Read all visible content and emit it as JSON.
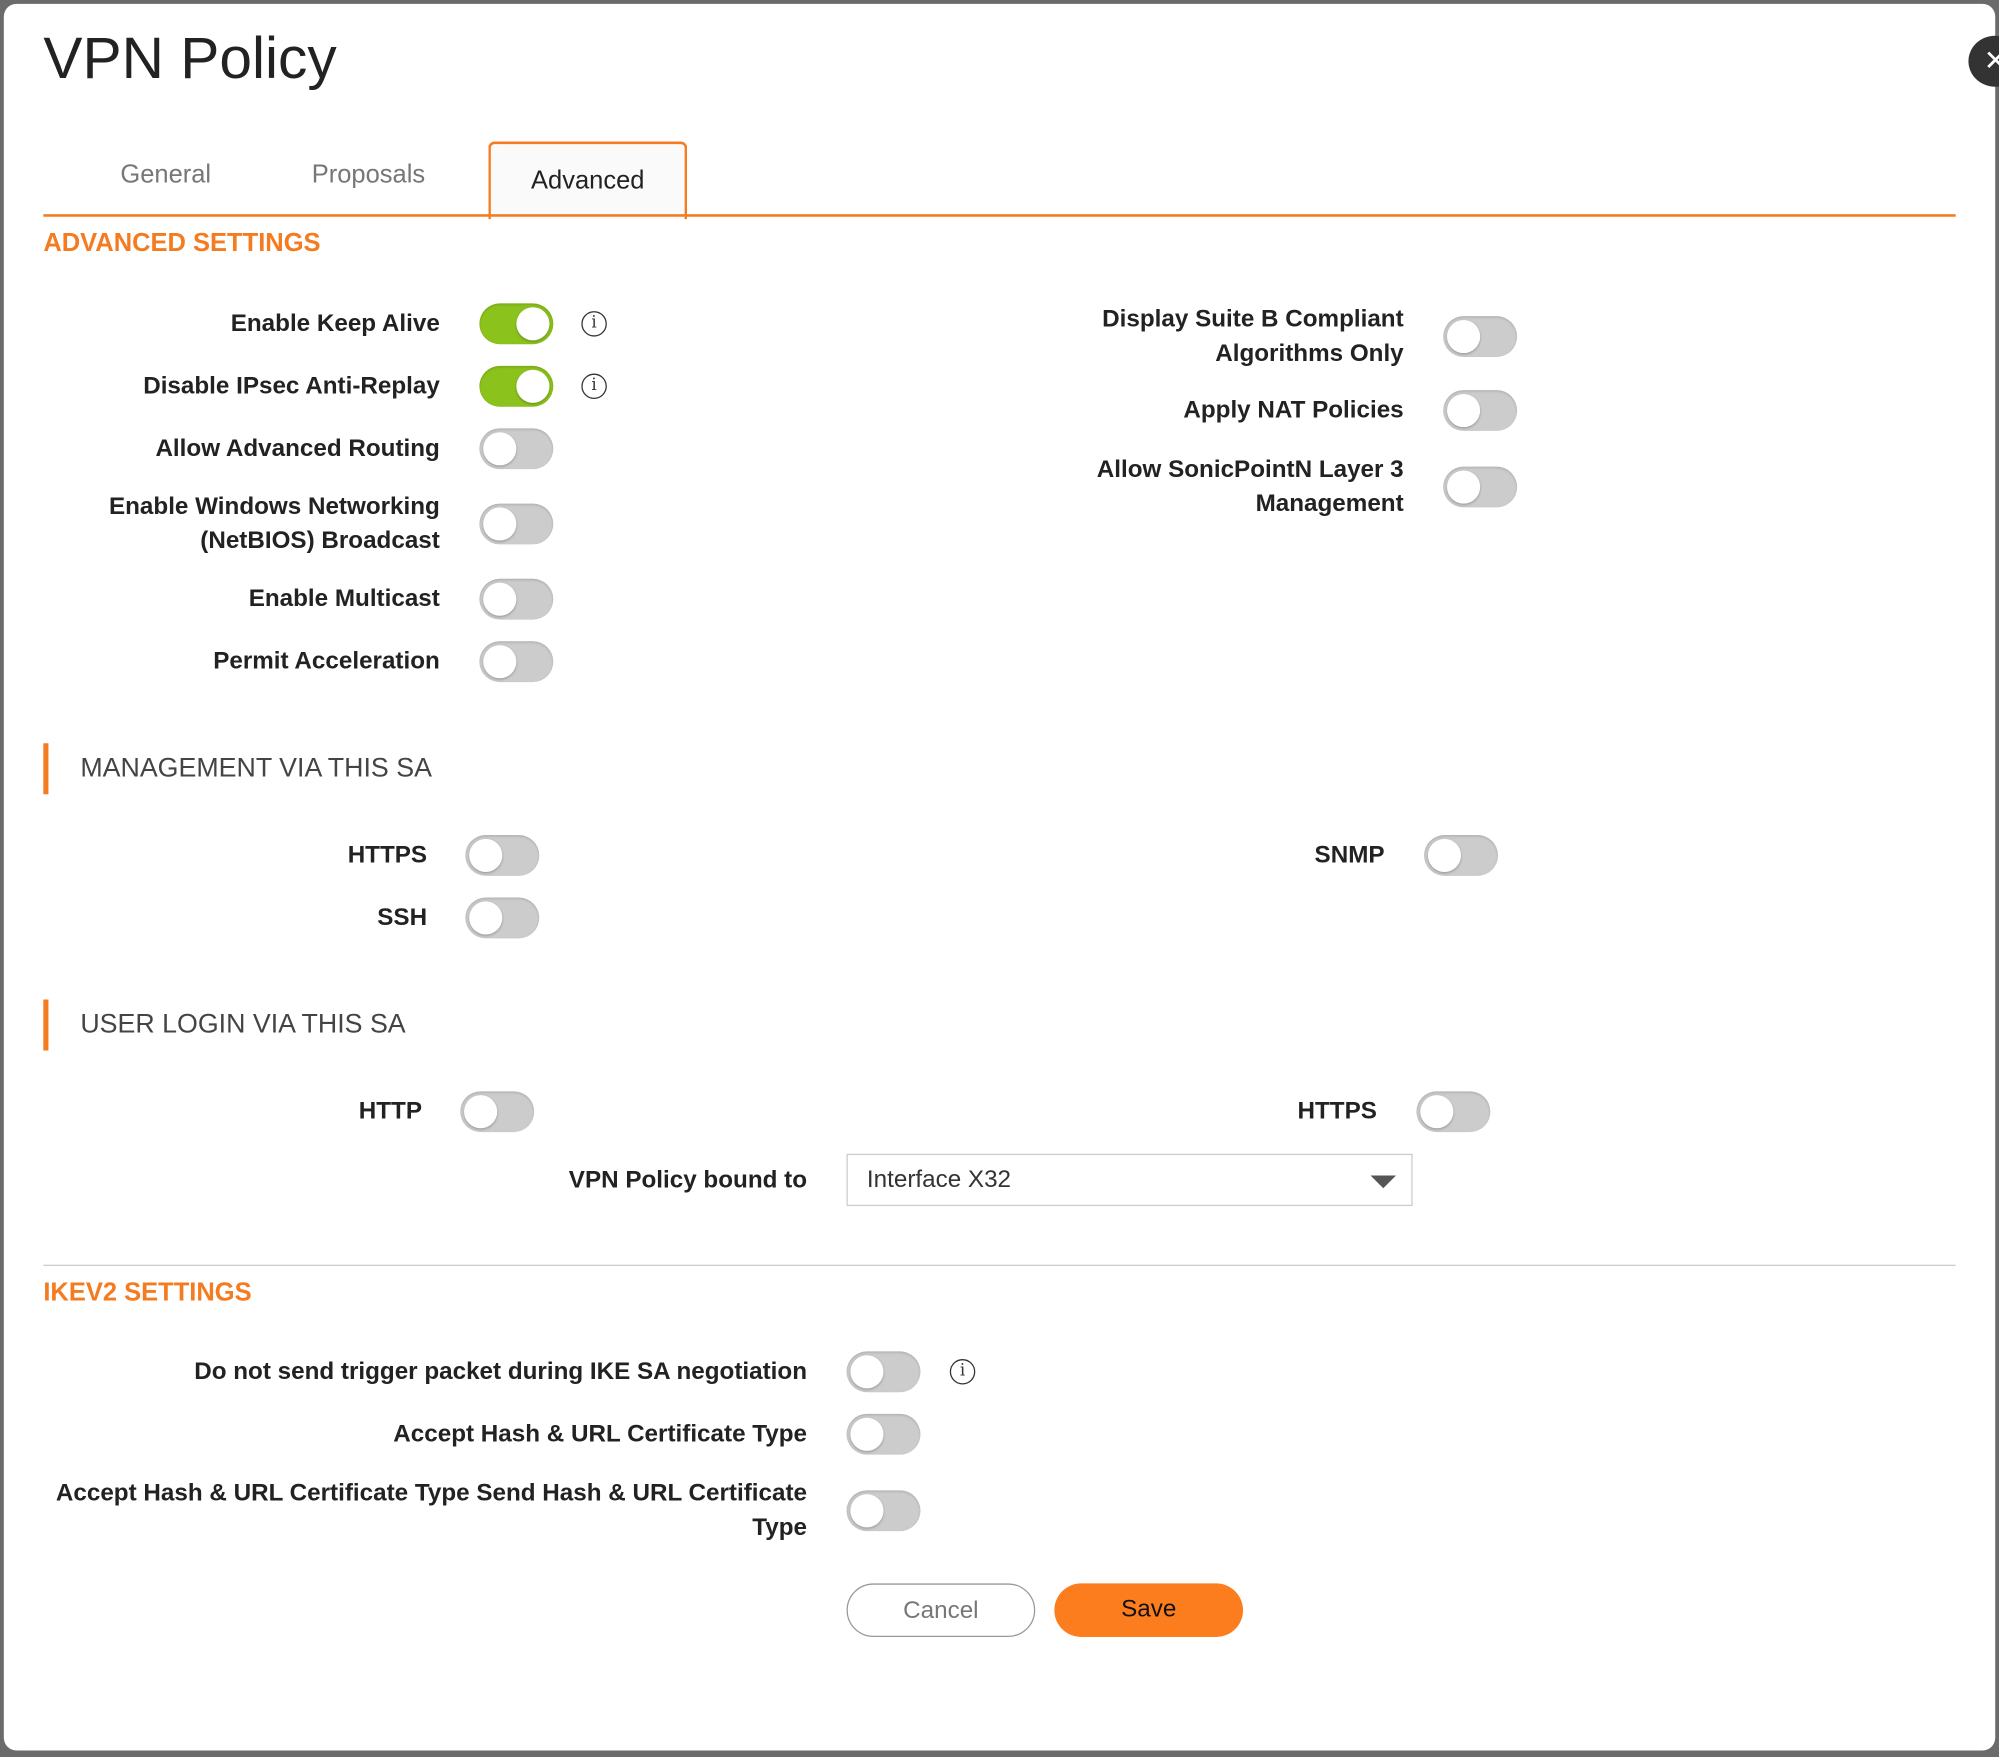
{
  "title": "VPN Policy",
  "colors": {
    "accent": "#f47b20",
    "toggle_on": "#8cc21c",
    "toggle_off": "#cccccc",
    "save": "#fb7d1e"
  },
  "tabs": [
    {
      "label": "General",
      "active": false
    },
    {
      "label": "Proposals",
      "active": false
    },
    {
      "label": "Advanced",
      "active": true
    }
  ],
  "advanced": {
    "heading": "ADVANCED SETTINGS",
    "left": [
      {
        "label": "Enable Keep Alive",
        "on": true,
        "info": true
      },
      {
        "label": "Disable IPsec Anti-Replay",
        "on": true,
        "info": true
      },
      {
        "label": "Allow Advanced Routing",
        "on": false
      },
      {
        "label": "Enable Windows Networking (NetBIOS) Broadcast",
        "on": false
      },
      {
        "label": "Enable Multicast",
        "on": false
      },
      {
        "label": "Permit Acceleration",
        "on": false
      }
    ],
    "right": [
      {
        "label": "Display Suite B Compliant Algorithms Only",
        "on": false
      },
      {
        "label": "Apply NAT Policies",
        "on": false
      },
      {
        "label": "Allow SonicPointN Layer 3 Management",
        "on": false
      }
    ]
  },
  "management": {
    "heading": "MANAGEMENT VIA THIS SA",
    "https": {
      "label": "HTTPS",
      "on": false
    },
    "ssh": {
      "label": "SSH",
      "on": false
    },
    "snmp": {
      "label": "SNMP",
      "on": false
    }
  },
  "user_login": {
    "heading": "USER LOGIN VIA THIS SA",
    "http": {
      "label": "HTTP",
      "on": false
    },
    "https": {
      "label": "HTTPS",
      "on": false
    },
    "bound_label": "VPN Policy bound to",
    "bound_value": "Interface X32"
  },
  "ikev2": {
    "heading": "IKEV2 SETTINGS",
    "rows": [
      {
        "label": "Do not send trigger packet during IKE SA negotiation",
        "on": false,
        "info": true
      },
      {
        "label": "Accept Hash & URL Certificate Type",
        "on": false
      },
      {
        "label": "Accept Hash & URL Certificate Type Send Hash & URL Certificate Type",
        "on": false
      }
    ]
  },
  "buttons": {
    "cancel": "Cancel",
    "save": "Save"
  },
  "info_glyph": "i",
  "close_glyph": "✕"
}
